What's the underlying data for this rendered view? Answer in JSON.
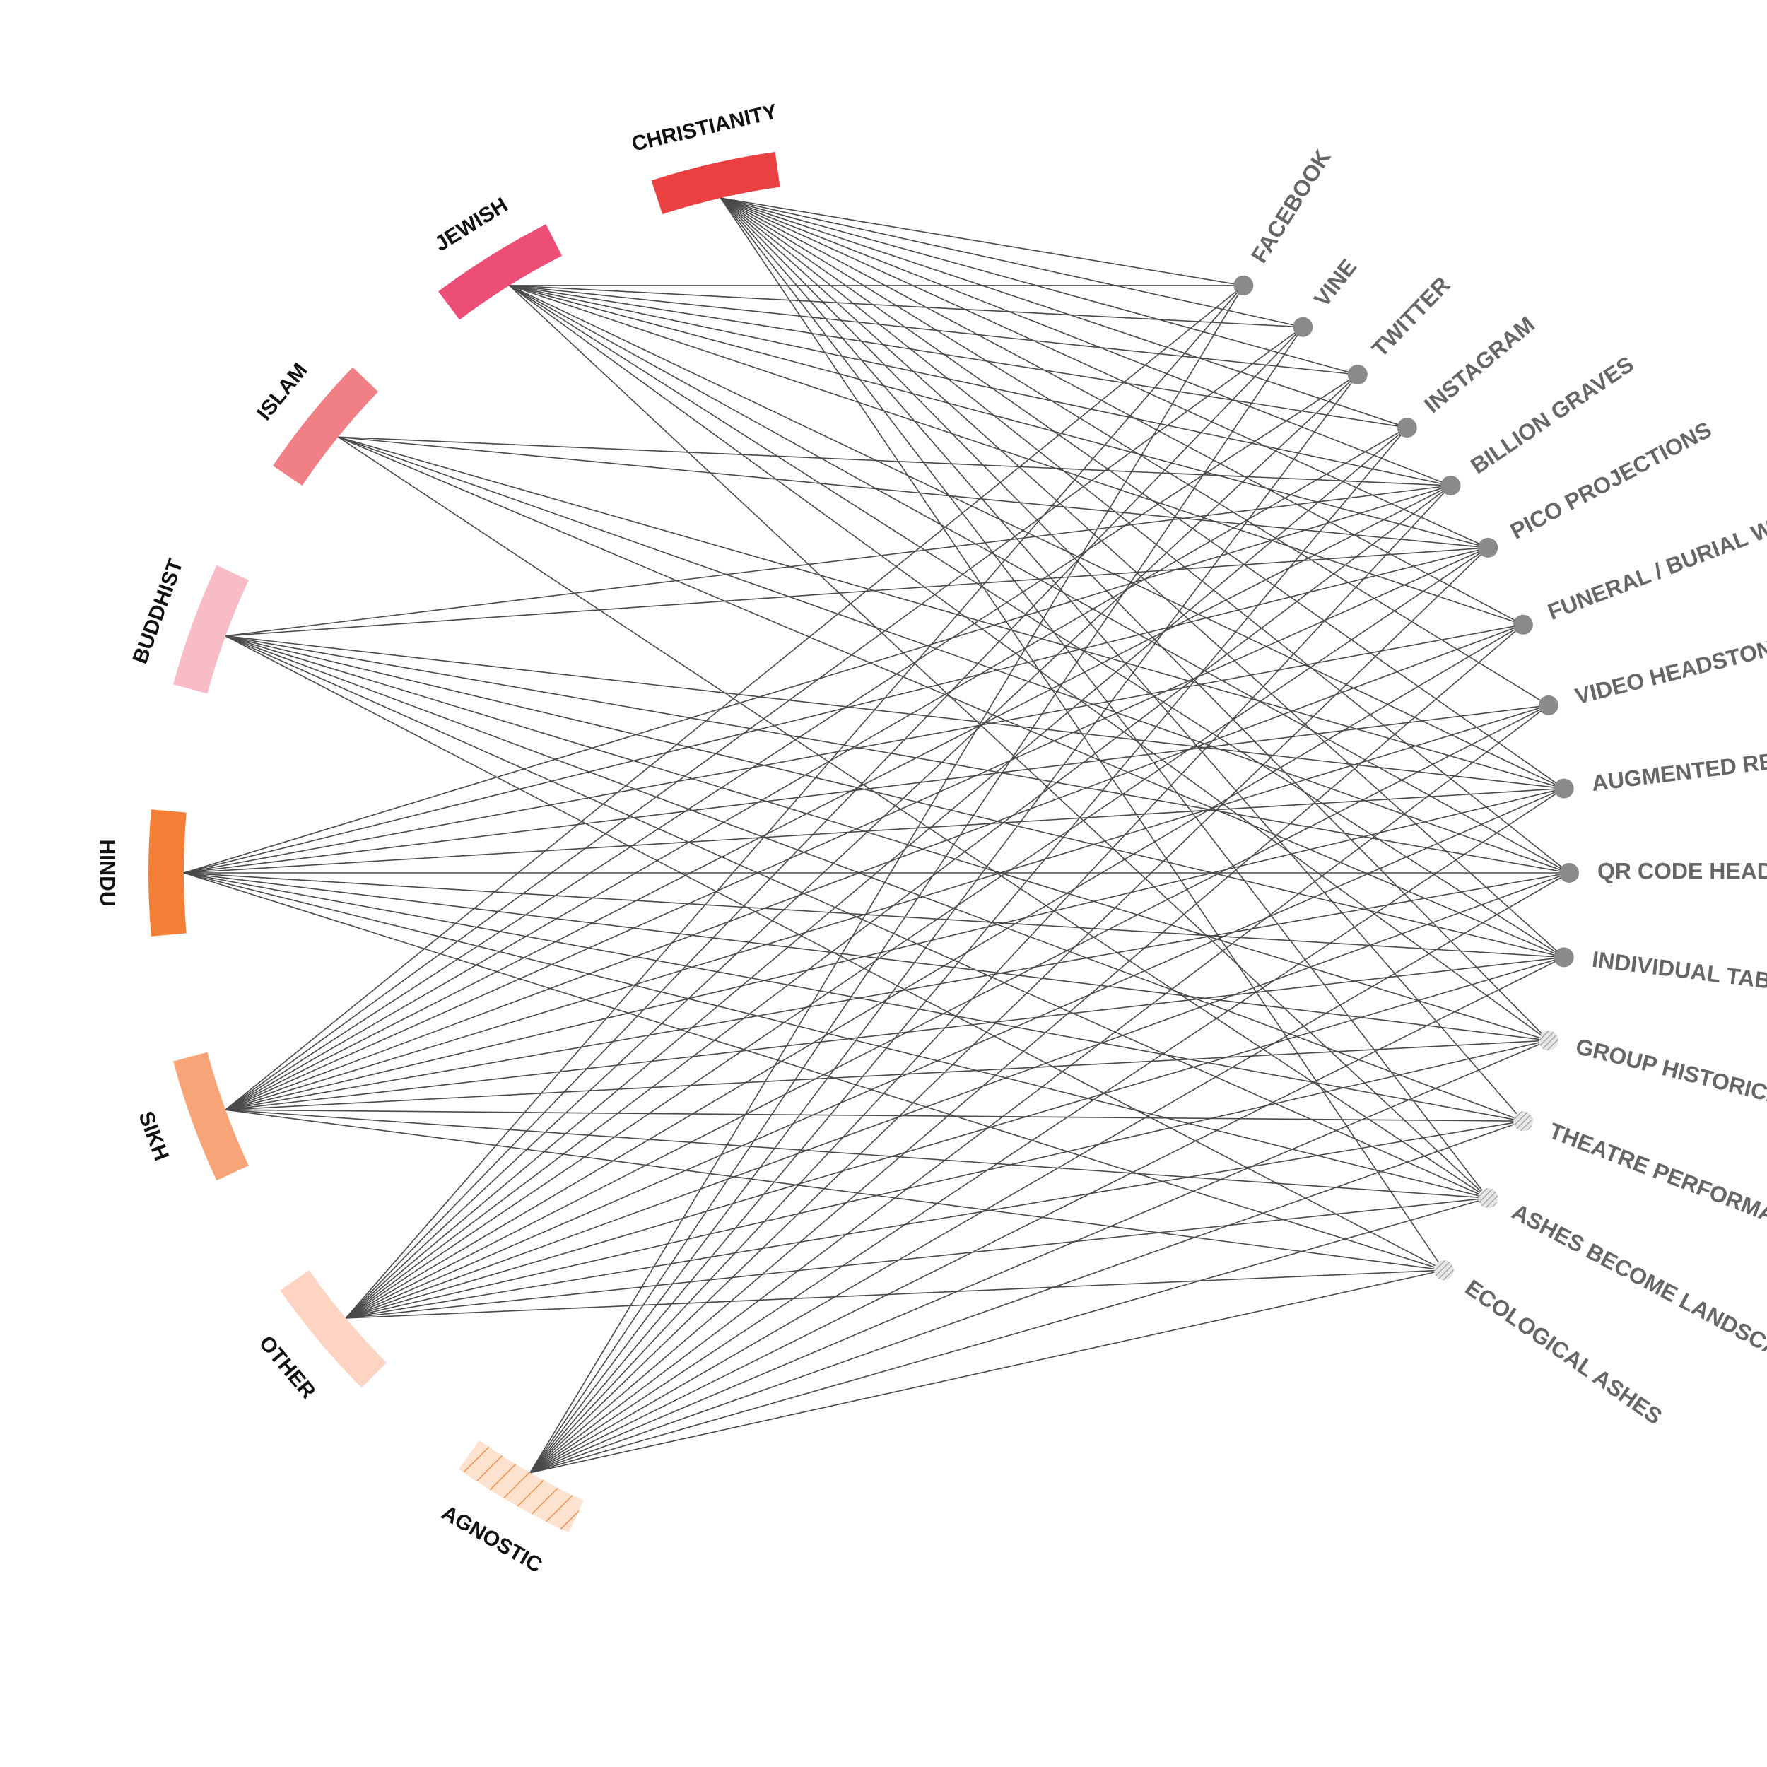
{
  "religions": [
    {
      "id": "christianity",
      "label": "CHRISTIANITY",
      "color": "#ea4042",
      "hatched": false
    },
    {
      "id": "jewish",
      "label": "JEWISH",
      "color": "#ec4e75",
      "hatched": false
    },
    {
      "id": "islam",
      "label": "ISLAM",
      "color": "#f08086",
      "hatched": false
    },
    {
      "id": "buddhist",
      "label": "BUDDHIST",
      "color": "#f7bcc5",
      "hatched": false
    },
    {
      "id": "hindu",
      "label": "HINDU",
      "color": "#f37e36",
      "hatched": false
    },
    {
      "id": "sikh",
      "label": "SIKH",
      "color": "#f7a578",
      "hatched": false
    },
    {
      "id": "other",
      "label": "OTHER",
      "color": "#fdd4c1",
      "hatched": false
    },
    {
      "id": "agnostic",
      "label": "AGNOSTIC",
      "color": "#f9a060",
      "hatched": true
    }
  ],
  "technologies": [
    {
      "id": "facebook",
      "label": "FACEBOOK",
      "style": "solid"
    },
    {
      "id": "vine",
      "label": "VINE",
      "style": "solid"
    },
    {
      "id": "twitter",
      "label": "TWITTER",
      "style": "solid"
    },
    {
      "id": "instagram",
      "label": "INSTAGRAM",
      "style": "solid"
    },
    {
      "id": "billion-graves",
      "label": "BILLION GRAVES",
      "style": "solid"
    },
    {
      "id": "pico-projections",
      "label": "PICO PROJECTIONS",
      "style": "solid"
    },
    {
      "id": "funeral-webcasting",
      "label": "FUNERAL / BURIAL WEBCASTING",
      "style": "solid"
    },
    {
      "id": "video-headstones",
      "label": "VIDEO HEADSTONES",
      "style": "solid"
    },
    {
      "id": "augmented-reality",
      "label": "AUGMENTED REALITY AURESMA",
      "style": "solid"
    },
    {
      "id": "qr-code-headstones",
      "label": "QR CODE HEADSTONES",
      "style": "solid"
    },
    {
      "id": "tablet-app-tours",
      "label": "INDIVIDUAL TABLET & APP TOURS",
      "style": "solid"
    },
    {
      "id": "group-historical-tours",
      "label": "GROUP HISTORICAL TOURS",
      "style": "hatched"
    },
    {
      "id": "theatre-performance",
      "label": "THEATRE PERFORMANCE",
      "style": "hatched"
    },
    {
      "id": "ashes-landscape",
      "label": "ASHES BECOME LANDSCAPE",
      "style": "hatched"
    },
    {
      "id": "ecological-ashes",
      "label": "ECOLOGICAL ASHES",
      "style": "hatched"
    }
  ],
  "links": {
    "christianity": [
      "facebook",
      "vine",
      "twitter",
      "instagram",
      "billion-graves",
      "pico-projections",
      "funeral-webcasting",
      "video-headstones",
      "augmented-reality",
      "qr-code-headstones",
      "tablet-app-tours",
      "group-historical-tours",
      "theatre-performance",
      "ashes-landscape",
      "ecological-ashes"
    ],
    "jewish": [
      "facebook",
      "vine",
      "twitter",
      "instagram",
      "billion-graves",
      "pico-projections",
      "funeral-webcasting",
      "augmented-reality",
      "qr-code-headstones",
      "tablet-app-tours",
      "group-historical-tours",
      "ashes-landscape"
    ],
    "islam": [
      "billion-graves",
      "pico-projections",
      "augmented-reality",
      "qr-code-headstones",
      "tablet-app-tours",
      "ashes-landscape"
    ],
    "buddhist": [
      "billion-graves",
      "pico-projections",
      "augmented-reality",
      "qr-code-headstones",
      "tablet-app-tours",
      "group-historical-tours",
      "theatre-performance",
      "ashes-landscape",
      "ecological-ashes"
    ],
    "hindu": [
      "billion-graves",
      "pico-projections",
      "funeral-webcasting",
      "video-headstones",
      "augmented-reality",
      "qr-code-headstones",
      "tablet-app-tours",
      "group-historical-tours",
      "theatre-performance",
      "ashes-landscape",
      "ecological-ashes"
    ],
    "sikh": [
      "facebook",
      "vine",
      "twitter",
      "instagram",
      "billion-graves",
      "pico-projections",
      "funeral-webcasting",
      "video-headstones",
      "augmented-reality",
      "qr-code-headstones",
      "tablet-app-tours",
      "group-historical-tours",
      "theatre-performance",
      "ashes-landscape",
      "ecological-ashes"
    ],
    "other": [
      "facebook",
      "vine",
      "twitter",
      "instagram",
      "billion-graves",
      "pico-projections",
      "funeral-webcasting",
      "video-headstones",
      "augmented-reality",
      "qr-code-headstones",
      "tablet-app-tours",
      "group-historical-tours",
      "theatre-performance",
      "ashes-landscape",
      "ecological-ashes"
    ],
    "agnostic": [
      "facebook",
      "vine",
      "twitter",
      "instagram",
      "billion-graves",
      "pico-projections",
      "funeral-webcasting",
      "video-headstones",
      "augmented-reality",
      "qr-code-headstones",
      "tablet-app-tours",
      "group-historical-tours",
      "theatre-performance",
      "ashes-landscape",
      "ecological-ashes"
    ]
  }
}
